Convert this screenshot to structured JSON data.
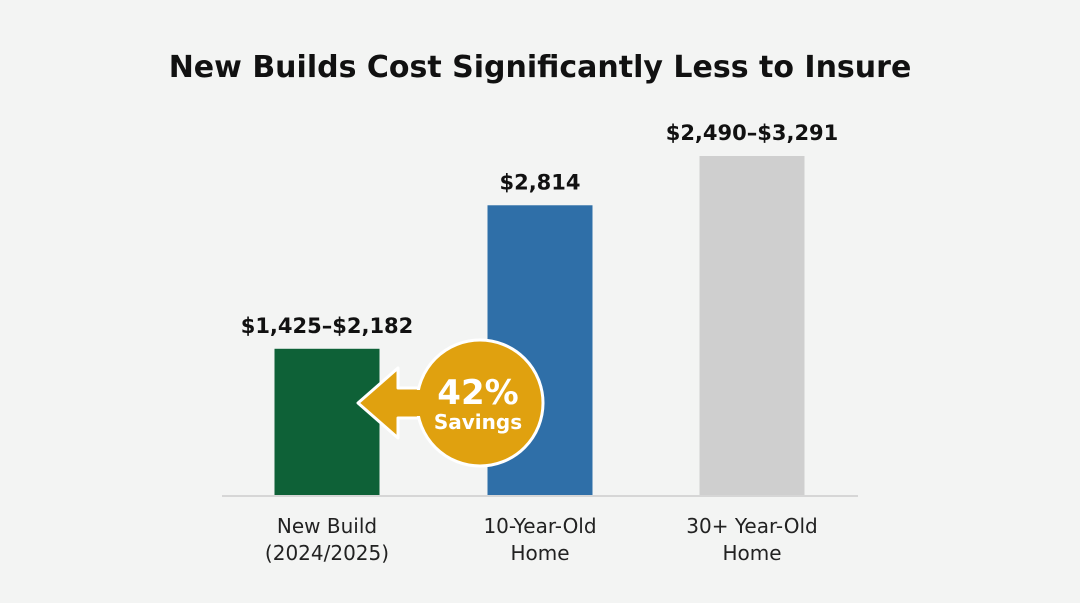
{
  "chart_data": {
    "type": "bar",
    "title": "New Builds Cost Significantly Less to Insure",
    "categories": [
      "New Build\n(2024/2025)",
      "10-Year-Old\nHome",
      "30+ Year-Old\nHome"
    ],
    "category_lines": [
      [
        "New Build",
        "(2024/2025)"
      ],
      [
        "10-Year-Old",
        "Home"
      ],
      [
        "30+ Year-Old",
        "Home"
      ]
    ],
    "values": [
      1425,
      2814,
      3291
    ],
    "data_labels": [
      "$1,425–$2,182",
      "$2,814",
      "$2,490–$3,291"
    ],
    "colors": [
      "#0e6137",
      "#2f6fa8",
      "#cfcfcf"
    ],
    "ylim": [
      0,
      3500
    ],
    "grid": false,
    "xlabel": "",
    "ylabel": "",
    "annotation": {
      "value": "42%",
      "label": "Savings",
      "color": "#e0a10f",
      "points_to": "New Build"
    }
  }
}
